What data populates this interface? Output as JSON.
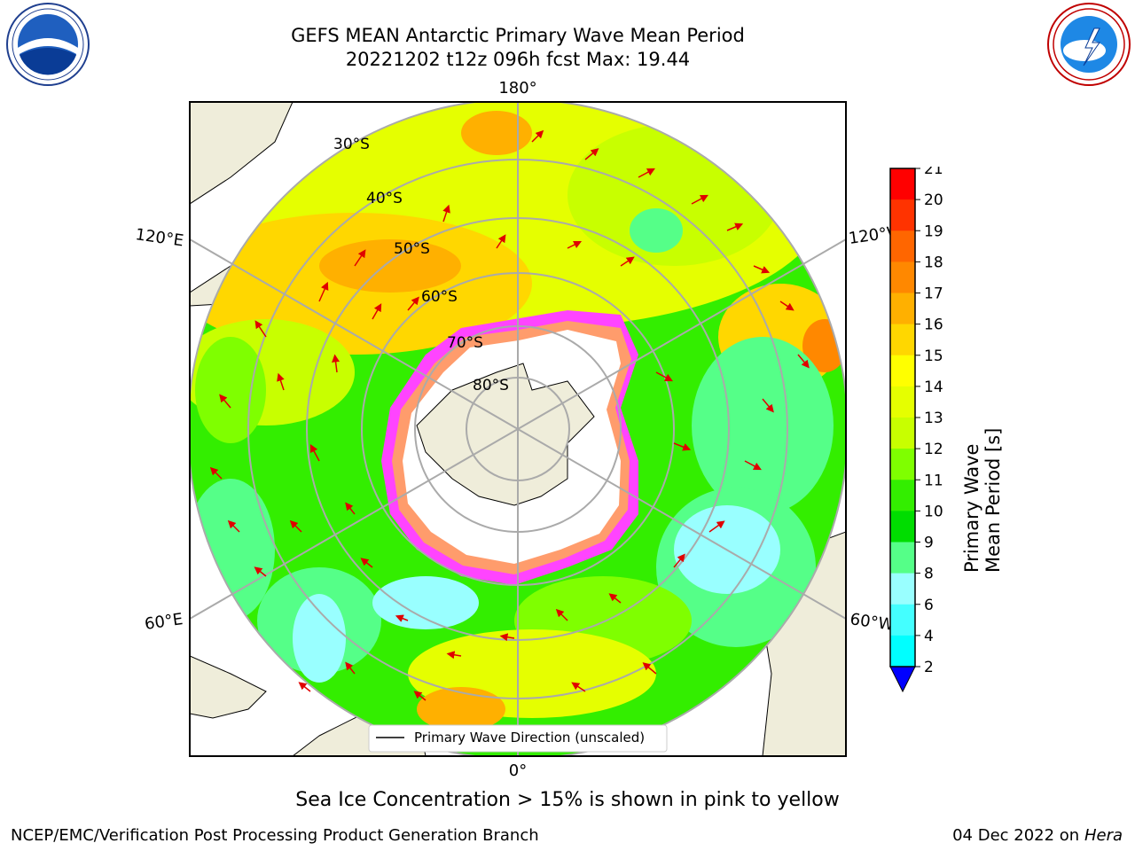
{
  "title_line1": "GEFS MEAN Antarctic Primary Wave Mean Period",
  "title_line2": "20221202 t12z 096h fcst   Max: 19.44",
  "logos": {
    "left": "NOAA",
    "right": "NATIONAL WEATHER SERVICE"
  },
  "map": {
    "longitude_labels": {
      "top": "180°",
      "bottom": "0°",
      "upper_left": "120°E",
      "upper_right": "120°W",
      "lower_left": "60°E",
      "lower_right": "60°W"
    },
    "latitude_labels": [
      "30°S",
      "40°S",
      "50°S",
      "60°S",
      "70°S",
      "80°S"
    ],
    "legend": "Primary Wave Direction (unscaled)"
  },
  "colorbar": {
    "label": "Primary Wave Mean Period [s]",
    "ticks": [
      "21",
      "20",
      "19",
      "18",
      "17",
      "16",
      "15",
      "14",
      "13",
      "12",
      "11",
      "10",
      "9",
      "8",
      "6",
      "4",
      "2"
    ],
    "colors": [
      "#ff0000",
      "#ff3300",
      "#ff6600",
      "#ff8800",
      "#ffb000",
      "#ffd700",
      "#ffff00",
      "#e5ff00",
      "#c8ff00",
      "#7fff00",
      "#33ee00",
      "#00dd00",
      "#55ff88",
      "#99ffff",
      "#44ffff",
      "#00ffff",
      "#00ddff",
      "#0088ff"
    ],
    "extend_color": "#0000ff"
  },
  "footer_note": "Sea Ice Concentration > 15% is shown in pink to yellow",
  "credit_left": "NCEP/EMC/Verification Post Processing Product Generation Branch",
  "credit_right_date": "04 Dec 2022 on",
  "credit_right_machine": "Hera"
}
